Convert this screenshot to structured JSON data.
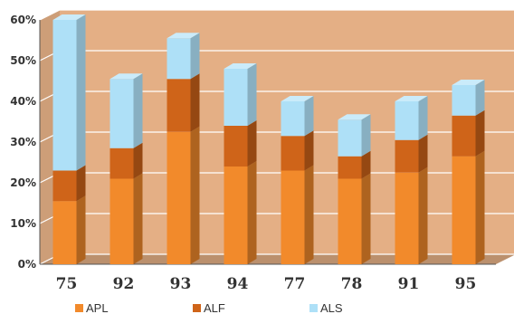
{
  "chart_data": {
    "type": "bar",
    "stacked": true,
    "three_d": true,
    "categories": [
      "75",
      "92",
      "93",
      "94",
      "77",
      "78",
      "91",
      "95"
    ],
    "series": [
      {
        "name": "APL",
        "values": [
          15.5,
          21,
          32.5,
          24,
          23,
          21,
          22.5,
          26.5
        ],
        "color": "#F28A2B"
      },
      {
        "name": "ALF",
        "values": [
          7.5,
          7.5,
          13,
          10,
          8.5,
          5.5,
          8,
          10
        ],
        "color": "#CF6419"
      },
      {
        "name": "ALS",
        "values": [
          37,
          17,
          10,
          14,
          8.5,
          9,
          9.5,
          7.5
        ],
        "color": "#AEE0F7"
      }
    ],
    "ylim": [
      0,
      60
    ],
    "yticks": [
      "0%",
      "10%",
      "20%",
      "30%",
      "40%",
      "50%",
      "60%"
    ],
    "grid": true,
    "legend": "bottom",
    "wall_color": "#E4AF85"
  }
}
